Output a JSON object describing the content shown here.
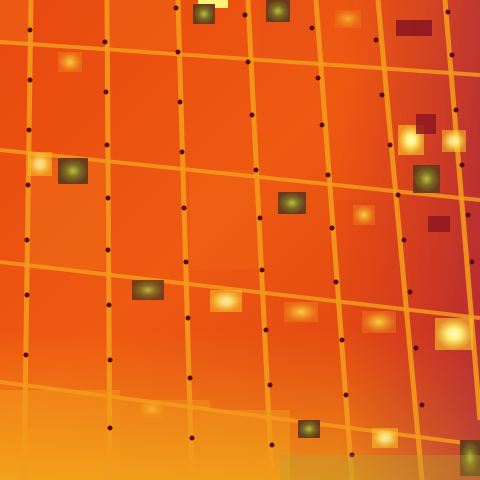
{
  "image": {
    "kind": "thermal-infrared-photo",
    "subject": "solar-panel-array",
    "palette": {
      "hot": "#fff27a",
      "warm": "#f7b21a",
      "base": "#ec5a12",
      "cool": "#c8280c",
      "coldest": "#7a1f3a",
      "cell_border": "#f39a1c",
      "rivet": "#5a0a14"
    }
  }
}
